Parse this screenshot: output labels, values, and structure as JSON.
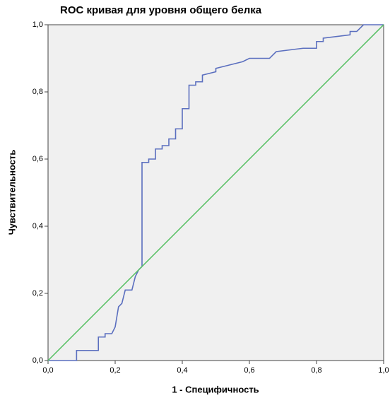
{
  "chart_data": {
    "type": "line",
    "title": "ROC кривая для уровня общего белка",
    "x_label": "1 - Специфичность",
    "y_label": "Чувствительность",
    "series": [
      {
        "color": "#5b6fbf",
        "x": [
          0,
          0.085,
          0.085,
          0.15,
          0.15,
          0.17,
          0.17,
          0.19,
          0.2,
          0.21,
          0.22,
          0.23,
          0.25,
          0.26,
          0.27,
          0.28,
          0.28,
          0.3,
          0.3,
          0.32,
          0.32,
          0.34,
          0.34,
          0.36,
          0.36,
          0.38,
          0.38,
          0.4,
          0.4,
          0.42,
          0.42,
          0.44,
          0.44,
          0.46,
          0.46,
          0.5,
          0.5,
          0.54,
          0.58,
          0.6,
          0.66,
          0.68,
          0.72,
          0.76,
          0.8,
          0.8,
          0.82,
          0.82,
          0.9,
          0.9,
          0.92,
          0.94,
          1
        ],
        "values": [
          0,
          0,
          0.03,
          0.03,
          0.07,
          0.07,
          0.08,
          0.08,
          0.1,
          0.16,
          0.17,
          0.21,
          0.21,
          0.25,
          0.27,
          0.28,
          0.59,
          0.59,
          0.6,
          0.6,
          0.63,
          0.63,
          0.64,
          0.64,
          0.66,
          0.66,
          0.69,
          0.69,
          0.75,
          0.75,
          0.82,
          0.82,
          0.83,
          0.83,
          0.85,
          0.86,
          0.87,
          0.88,
          0.89,
          0.9,
          0.9,
          0.92,
          0.925,
          0.93,
          0.93,
          0.95,
          0.95,
          0.96,
          0.97,
          0.98,
          0.98,
          1,
          1
        ]
      },
      {
        "color": "#5ec26a",
        "x": [
          0,
          1
        ],
        "values": [
          0,
          1
        ]
      }
    ],
    "xlim": [
      0,
      1
    ],
    "ylim": [
      0,
      1
    ],
    "xticks": [
      {
        "value": 0,
        "label": "0,0"
      },
      {
        "value": 0.2,
        "label": "0,2"
      },
      {
        "value": 0.4,
        "label": "0,4"
      },
      {
        "value": 0.6,
        "label": "0,6"
      },
      {
        "value": 0.8,
        "label": "0,8"
      },
      {
        "value": 1,
        "label": "1,0"
      }
    ],
    "yticks": [
      {
        "value": 0,
        "label": "0,0"
      },
      {
        "value": 0.2,
        "label": "0,2"
      },
      {
        "value": 0.4,
        "label": "0,4"
      },
      {
        "value": 0.6,
        "label": "0,6"
      },
      {
        "value": 0.8,
        "label": "0,8"
      },
      {
        "value": 1,
        "label": "1,0"
      }
    ]
  }
}
